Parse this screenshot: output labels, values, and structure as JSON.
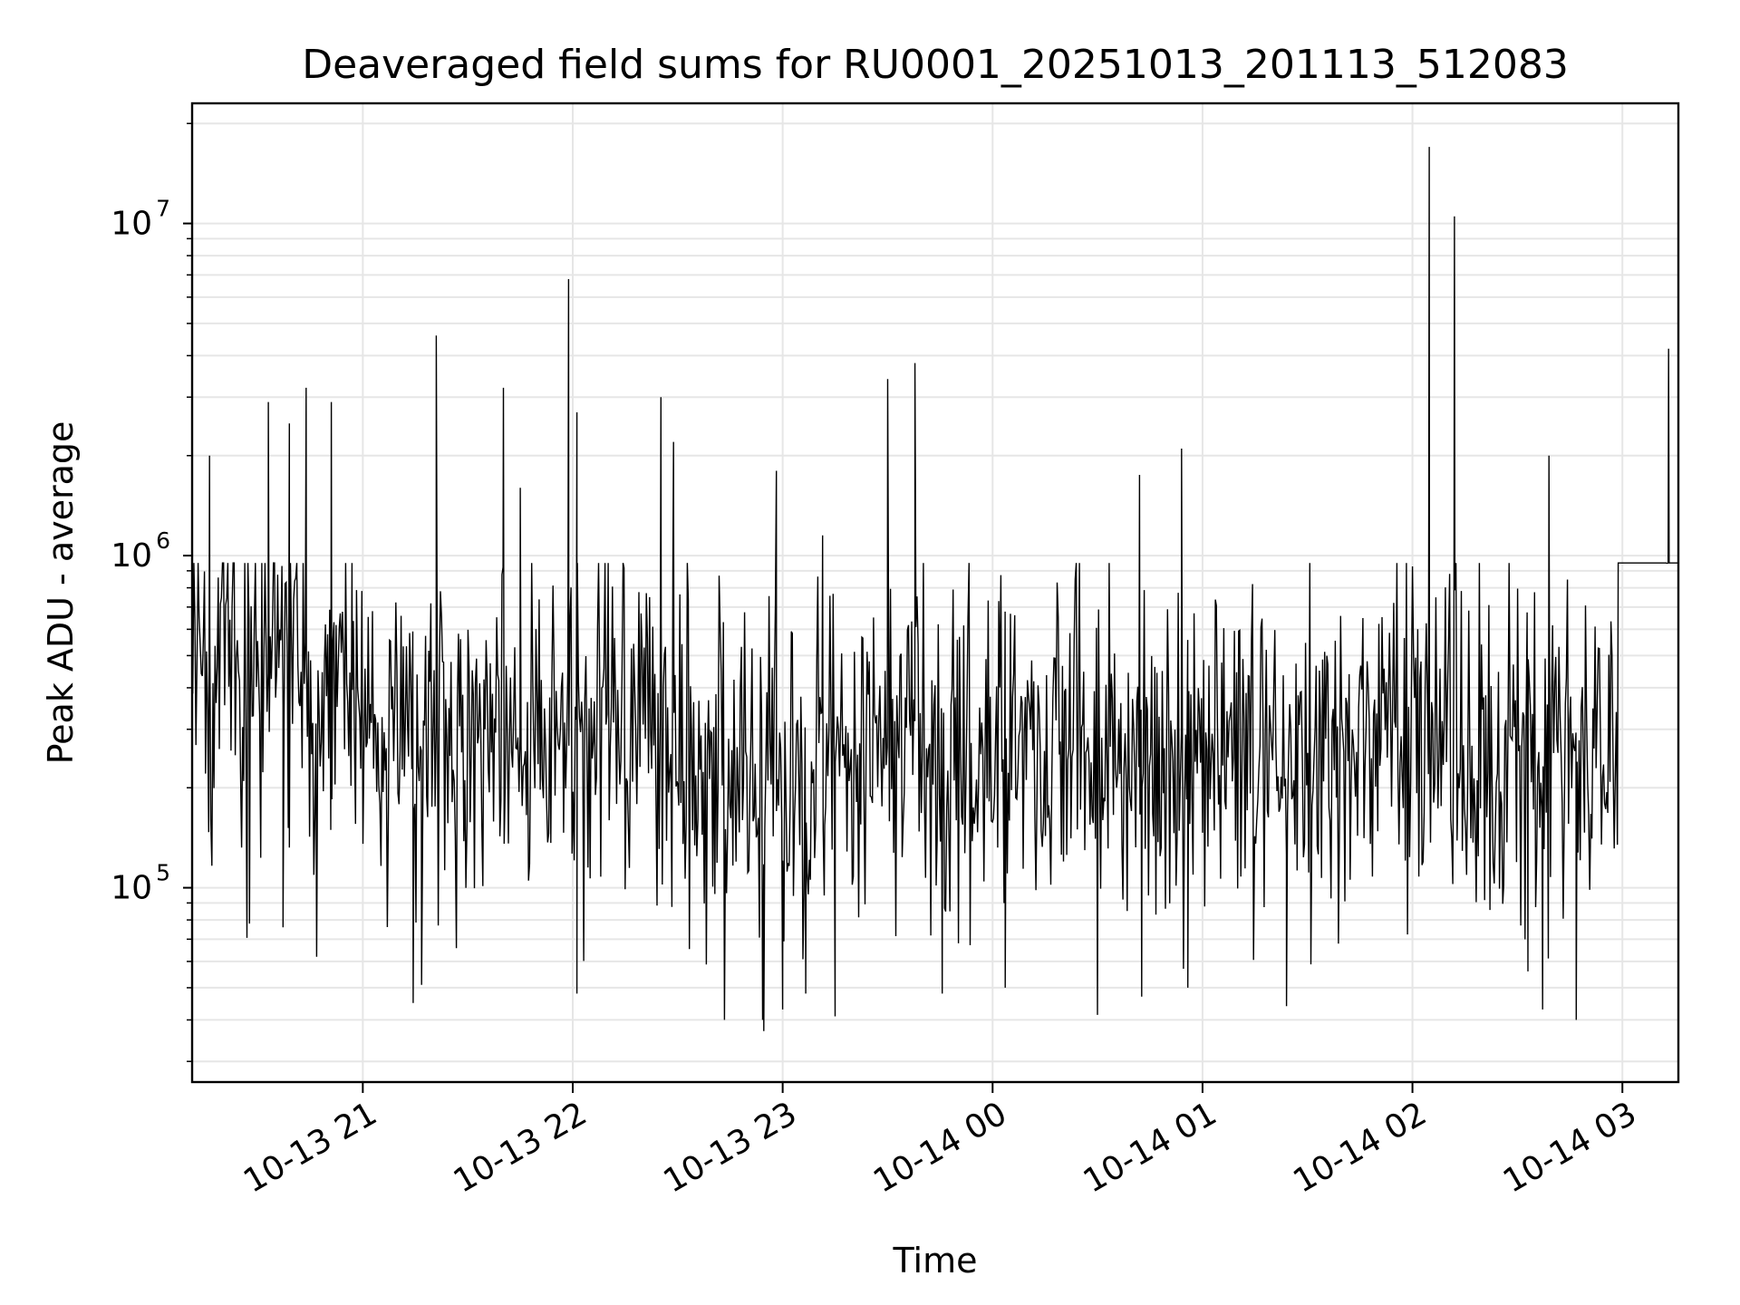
{
  "chart_data": {
    "type": "line",
    "title": "Deaveraged field sums for RU0001_20251013_201113_512083",
    "xlabel": "Time",
    "ylabel": "Peak ADU - average",
    "yscale": "log",
    "ylim": [
      26000,
      23000000
    ],
    "xlim": [
      "2025-10-13 20:11:13",
      "2025-10-14 03:16:00"
    ],
    "x_ticks": [
      {
        "label": "10-13 21",
        "hours": 21
      },
      {
        "label": "10-13 22",
        "hours": 22
      },
      {
        "label": "10-13 23",
        "hours": 23
      },
      {
        "label": "10-14 00",
        "hours": 24
      },
      {
        "label": "10-14 01",
        "hours": 25
      },
      {
        "label": "10-14 02",
        "hours": 26
      },
      {
        "label": "10-14 03",
        "hours": 27
      }
    ],
    "y_ticks": [
      {
        "value": 100000,
        "base": "10",
        "exp": "5"
      },
      {
        "value": 1000000,
        "base": "10",
        "exp": "6"
      },
      {
        "value": 10000000,
        "base": "10",
        "exp": "7"
      }
    ],
    "grid": true,
    "line_color": "#000000",
    "grid_color": "#e6e6e6",
    "series": [
      {
        "name": "Peak ADU - average",
        "regimes": [
          {
            "start_h": 20.19,
            "end_h": 20.95,
            "median": 450000,
            "spread": 0.42
          },
          {
            "start_h": 20.95,
            "end_h": 22.5,
            "median": 280000,
            "spread": 0.36
          },
          {
            "start_h": 22.5,
            "end_h": 23.2,
            "median": 210000,
            "spread": 0.4
          },
          {
            "start_h": 23.2,
            "end_h": 26.0,
            "median": 250000,
            "spread": 0.36
          },
          {
            "start_h": 26.0,
            "end_h": 26.98,
            "median": 260000,
            "spread": 0.36
          },
          {
            "start_h": 26.98,
            "end_h": 27.27,
            "median": 1400000,
            "spread": 0.16
          }
        ],
        "spikes": [
          {
            "t_h": 20.27,
            "value": 2000000
          },
          {
            "t_h": 20.55,
            "value": 2900000
          },
          {
            "t_h": 20.65,
            "value": 2500000
          },
          {
            "t_h": 20.73,
            "value": 3200000
          },
          {
            "t_h": 20.85,
            "value": 2900000
          },
          {
            "t_h": 21.35,
            "value": 4600000
          },
          {
            "t_h": 21.67,
            "value": 3200000
          },
          {
            "t_h": 21.75,
            "value": 1600000
          },
          {
            "t_h": 21.98,
            "value": 6800000
          },
          {
            "t_h": 22.02,
            "value": 2700000
          },
          {
            "t_h": 22.42,
            "value": 3000000
          },
          {
            "t_h": 22.48,
            "value": 2200000
          },
          {
            "t_h": 22.97,
            "value": 1800000
          },
          {
            "t_h": 23.19,
            "value": 1150000
          },
          {
            "t_h": 23.5,
            "value": 3400000
          },
          {
            "t_h": 23.63,
            "value": 3800000
          },
          {
            "t_h": 24.7,
            "value": 1750000
          },
          {
            "t_h": 24.9,
            "value": 2100000
          },
          {
            "t_h": 26.08,
            "value": 17000000
          },
          {
            "t_h": 26.2,
            "value": 10500000
          },
          {
            "t_h": 26.65,
            "value": 2000000
          },
          {
            "t_h": 27.22,
            "value": 4200000
          }
        ],
        "dips": [
          {
            "t_h": 20.46,
            "value": 78000
          },
          {
            "t_h": 20.62,
            "value": 76000
          },
          {
            "t_h": 20.78,
            "value": 62000
          },
          {
            "t_h": 21.24,
            "value": 45000
          },
          {
            "t_h": 21.28,
            "value": 51000
          },
          {
            "t_h": 22.02,
            "value": 48000
          },
          {
            "t_h": 22.91,
            "value": 37000
          },
          {
            "t_h": 23.0,
            "value": 43000
          },
          {
            "t_h": 23.11,
            "value": 48000
          },
          {
            "t_h": 23.25,
            "value": 41000
          },
          {
            "t_h": 23.76,
            "value": 48000
          },
          {
            "t_h": 24.06,
            "value": 50000
          },
          {
            "t_h": 24.71,
            "value": 47000
          },
          {
            "t_h": 24.93,
            "value": 50000
          },
          {
            "t_h": 25.4,
            "value": 44000
          },
          {
            "t_h": 26.55,
            "value": 56000
          },
          {
            "t_h": 26.62,
            "value": 43000
          },
          {
            "t_h": 26.78,
            "value": 40000
          }
        ]
      }
    ]
  }
}
